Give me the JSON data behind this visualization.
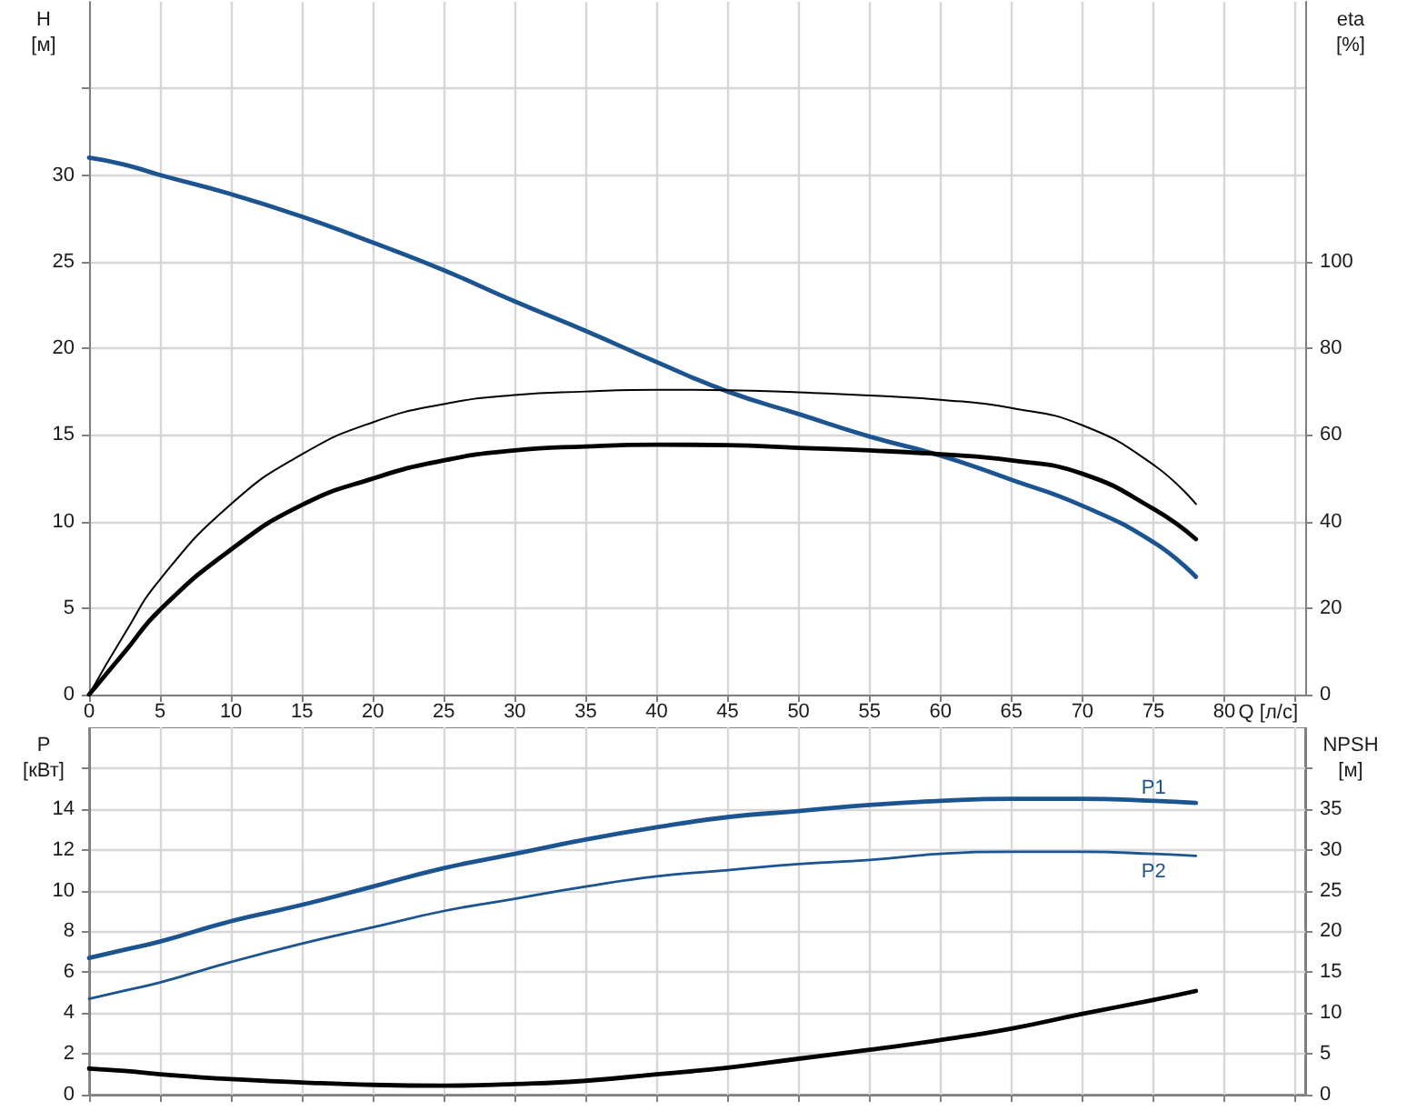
{
  "chart_data": [
    {
      "type": "line",
      "xlabel": "Q [л/с]",
      "ylabel": "H [м]",
      "y2label": "eta [%]",
      "x": [
        0,
        2.5,
        5,
        10,
        15,
        20,
        25,
        30,
        35,
        40,
        45,
        50,
        55,
        60,
        65,
        70,
        75,
        78
      ],
      "series": [
        {
          "color": "#1c5490",
          "values": [
            31.0,
            30.6,
            30.0,
            28.9,
            27.6,
            26.1,
            24.5,
            22.7,
            21.0,
            19.2,
            17.5,
            16.2,
            14.9,
            13.8,
            12.4,
            10.9,
            8.8,
            6.8
          ]
        },
        {
          "color": "#000000",
          "axis": "y2",
          "values": [
            0,
            14,
            26.6,
            44.0,
            55.5,
            62.9,
            67.1,
            69.2,
            70.0,
            70.4,
            70.3,
            69.8,
            69.1,
            68.1,
            66.2,
            62.2,
            53.1,
            44.0
          ]
        },
        {
          "color": "#000000",
          "axis": "y2",
          "values": [
            0,
            9.8,
            19.6,
            33.5,
            43.8,
            49.9,
            54.1,
            56.4,
            57.3,
            57.7,
            57.6,
            57.0,
            56.4,
            55.5,
            54.1,
            51.0,
            42.9,
            35.9
          ]
        }
      ],
      "xlim": [
        0,
        85.7
      ],
      "xticks": [
        0,
        5,
        10,
        15,
        20,
        25,
        30,
        35,
        40,
        45,
        50,
        55,
        60,
        65,
        70,
        75,
        80,
        {
          "value": 85,
          "label": null
        }
      ],
      "ylim": [
        0,
        40
      ],
      "yticks": [
        0,
        5,
        10,
        15,
        20,
        25,
        30,
        {
          "value": 35,
          "label": null
        }
      ],
      "y2lim": [
        0,
        160
      ],
      "y2ticks": [
        0,
        20,
        40,
        60,
        80,
        100
      ],
      "grid": true
    },
    {
      "type": "line",
      "ylabel": "P [кВт]",
      "y2label": "NPSH [м]",
      "x": [
        0,
        2.5,
        5,
        10,
        15,
        20,
        25,
        30,
        35,
        40,
        45,
        50,
        55,
        60,
        65,
        70,
        75,
        78
      ],
      "series": [
        {
          "name": "P1",
          "color": "#1c5490",
          "values": [
            6.7,
            7.1,
            7.5,
            8.5,
            9.3,
            10.2,
            11.1,
            11.8,
            12.5,
            13.1,
            13.6,
            13.9,
            14.2,
            14.4,
            14.5,
            14.5,
            14.4,
            14.3
          ]
        },
        {
          "name": "P2",
          "color": "#1c5490",
          "values": [
            4.7,
            5.1,
            5.5,
            6.5,
            7.4,
            8.2,
            9.0,
            9.6,
            10.2,
            10.7,
            11.0,
            11.3,
            11.5,
            11.8,
            11.9,
            11.9,
            11.8,
            11.7
          ]
        },
        {
          "color": "#000000",
          "axis": "y2",
          "values": [
            3.2,
            2.9,
            2.5,
            1.9,
            1.5,
            1.2,
            1.1,
            1.3,
            1.7,
            2.5,
            3.3,
            4.4,
            5.5,
            6.7,
            8.1,
            9.9,
            11.6,
            12.7
          ]
        }
      ],
      "xlim": [
        0,
        85.7
      ],
      "xticks": [
        0,
        5,
        10,
        15,
        20,
        25,
        30,
        35,
        40,
        45,
        50,
        55,
        60,
        65,
        70,
        75,
        80,
        {
          "value": 85,
          "label": null
        }
      ],
      "ylim": [
        0,
        18
      ],
      "yticks": [
        0,
        2,
        4,
        6,
        8,
        10,
        12,
        14,
        {
          "value": 16,
          "label": null
        }
      ],
      "y2lim": [
        0,
        45
      ],
      "y2ticks": [
        0,
        5,
        10,
        15,
        20,
        25,
        30,
        35,
        {
          "value": 40,
          "label": null
        }
      ],
      "grid": true,
      "tick_labels": "y"
    }
  ]
}
